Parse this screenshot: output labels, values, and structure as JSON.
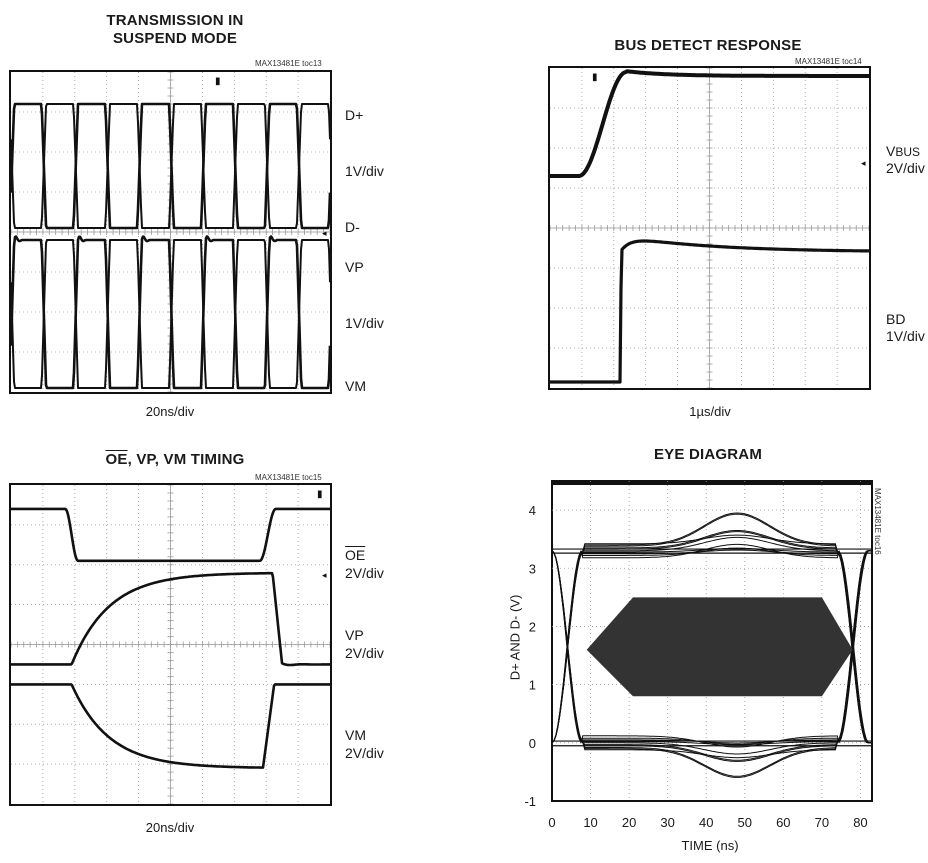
{
  "colors": {
    "trace": "#111111",
    "grid": "#9a9a9a",
    "eye_mask": "#333333"
  },
  "chart_data": [
    {
      "id": "toc13",
      "type": "line",
      "title": "TRANSMISSION IN SUSPEND MODE",
      "title_lines": [
        "TRANSMISSION IN",
        "SUSPEND MODE"
      ],
      "ref": "MAX13481E toc13",
      "timebase": "20ns/div",
      "grid": true,
      "channels": [
        {
          "label": "D+"
        },
        {
          "label": "1V/div"
        },
        {
          "label": "D-"
        },
        {
          "label": "VP"
        },
        {
          "label": "1V/div"
        },
        {
          "label": "VM"
        }
      ],
      "x_divisions": 10,
      "y_divisions": 8,
      "series": [
        {
          "name": "D+",
          "period_div": 2.0,
          "high_div": 7.2,
          "low_div": 4.1
        },
        {
          "name": "D-",
          "period_div": 2.0,
          "high_div": 7.2,
          "low_div": 4.1
        },
        {
          "name": "VP",
          "period_div": 2.0,
          "high_div": 3.8,
          "low_div": 0.1
        },
        {
          "name": "VM",
          "period_div": 2.0,
          "high_div": 3.8,
          "low_div": 0.1
        }
      ]
    },
    {
      "id": "toc14",
      "type": "line",
      "title": "BUS DETECT RESPONSE",
      "ref": "MAX13481E toc14",
      "timebase": "1µs/div",
      "grid": true,
      "channels": [
        {
          "label": "V",
          "sub": "BUS",
          "scale": "2V/div"
        },
        {
          "label": "BD",
          "scale": "1V/div"
        }
      ],
      "x_divisions": 10,
      "y_divisions": 8,
      "series": [
        {
          "name": "VBUS",
          "start_div": 5.3,
          "end_div": 7.8,
          "rise_start_div": 0.9,
          "rise_end_div": 2.4
        },
        {
          "name": "BD",
          "start_div": 0.15,
          "peak_div": 3.8,
          "end_div": 3.4,
          "step_at_div": 2.2
        }
      ]
    },
    {
      "id": "toc15",
      "type": "line",
      "title": "OE, VP, VM TIMING",
      "title_overline": "OE",
      "title_rest": ", VP, VM TIMING",
      "ref": "MAX13481E toc15",
      "timebase": "20ns/div",
      "grid": true,
      "channels": [
        {
          "label": "OE",
          "overline": true,
          "scale": "2V/div"
        },
        {
          "label": "VP",
          "scale": "2V/div"
        },
        {
          "label": "VM",
          "scale": "2V/div"
        }
      ],
      "x_divisions": 10,
      "y_divisions": 8,
      "series": [
        {
          "name": "OE",
          "high_div": 7.4,
          "low_div": 6.1,
          "fall_at_div": 1.7,
          "rise_at_div": 7.8
        },
        {
          "name": "VP",
          "low_div": 3.5,
          "high_div": 5.8,
          "rise_at_div": 1.9,
          "fall_at_div": 8.2
        },
        {
          "name": "VM",
          "high_div": 3.0,
          "low_div": 0.9,
          "fall_at_div": 1.9,
          "rise_at_div": 7.9
        }
      ]
    },
    {
      "id": "toc16",
      "type": "line",
      "title": "EYE DIAGRAM",
      "ref": "MAX13481E toc16",
      "xlabel": "TIME (ns)",
      "ylabel": "D+ AND D- (V)",
      "xlim": [
        0,
        83
      ],
      "ylim": [
        -1,
        4.5
      ],
      "x_ticks": [
        0,
        10,
        20,
        30,
        40,
        50,
        60,
        70,
        80
      ],
      "y_ticks": [
        -1,
        0,
        1,
        2,
        3,
        4
      ],
      "grid": true,
      "mask": [
        [
          9,
          1.6
        ],
        [
          21,
          2.5
        ],
        [
          70,
          2.5
        ],
        [
          78,
          1.6
        ],
        [
          70,
          0.8
        ],
        [
          21,
          0.8
        ]
      ],
      "levels": {
        "high": 3.3,
        "low": 0.0
      }
    }
  ]
}
